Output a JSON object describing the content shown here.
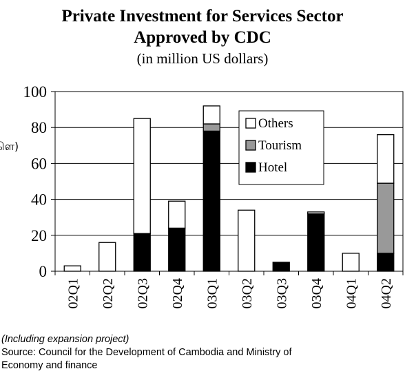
{
  "title_line1": "Private Investment for Services  Sector",
  "title_line2": "Approved by CDC",
  "subtitle": "(in million US dollars)",
  "ylabel_fragment": "ளெ) ๿",
  "note": "(Including expansion project)",
  "source_line1": "Source: Council for the Development of Cambodia and Ministry of",
  "source_line2": "Economy and finance",
  "colors": {
    "Others": "#ffffff",
    "Tourism": "#999999",
    "Hotel": "#000000"
  },
  "chart_data": {
    "type": "bar",
    "stacked": true,
    "title": "Private Investment for Services  Sector Approved by CDC",
    "subtitle": "(in million US dollars)",
    "categories": [
      "02Q1",
      "02Q2",
      "02Q3",
      "02Q4",
      "03Q1",
      "03Q2",
      "03Q3",
      "03Q4",
      "04Q1",
      "04Q2"
    ],
    "series": [
      {
        "name": "Hotel",
        "values": [
          0,
          0,
          21,
          24,
          78,
          0,
          5,
          32,
          0,
          10
        ]
      },
      {
        "name": "Tourism",
        "values": [
          0,
          0,
          0,
          0,
          4,
          0,
          0,
          0,
          0,
          39
        ]
      },
      {
        "name": "Others",
        "values": [
          3,
          16,
          64,
          15,
          10,
          34,
          0,
          1,
          10,
          27
        ]
      }
    ],
    "yticks": [
      0,
      20,
      40,
      60,
      80,
      100
    ],
    "ylim": [
      0,
      100
    ],
    "legend_position": "top-right",
    "grid": true
  }
}
